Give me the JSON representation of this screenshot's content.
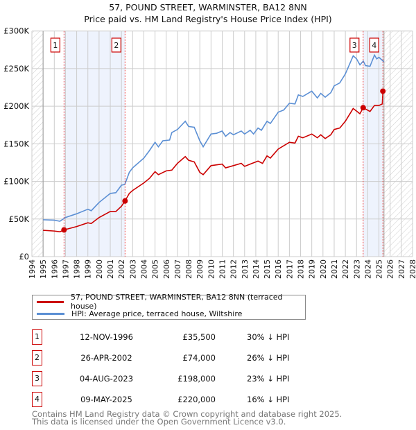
{
  "title": "57, POUND STREET, WARMINSTER, BA12 8NN",
  "subtitle": "Price paid vs. HM Land Registry's House Price Index (HPI)",
  "chart_data": {
    "type": "line",
    "title": "57, POUND STREET, WARMINSTER, BA12 8NN",
    "subtitle": "Price paid vs. HM Land Registry's House Price Index (HPI)",
    "xlim": [
      1994,
      2028
    ],
    "ylim": [
      0,
      300000
    ],
    "x_ticks": [
      "1994",
      "1995",
      "1996",
      "1997",
      "1998",
      "1999",
      "2000",
      "2001",
      "2002",
      "2003",
      "2004",
      "2005",
      "2006",
      "2007",
      "2008",
      "2009",
      "2010",
      "2011",
      "2012",
      "2013",
      "2014",
      "2015",
      "2016",
      "2017",
      "2018",
      "2019",
      "2020",
      "2021",
      "2022",
      "2023",
      "2024",
      "2025",
      "2026",
      "2027",
      "2028"
    ],
    "y_ticks": [
      {
        "v": 0,
        "label": "£0"
      },
      {
        "v": 50000,
        "label": "£50K"
      },
      {
        "v": 100000,
        "label": "£100K"
      },
      {
        "v": 150000,
        "label": "£150K"
      },
      {
        "v": 200000,
        "label": "£200K"
      },
      {
        "v": 250000,
        "label": "£250K"
      },
      {
        "v": 300000,
        "label": "£300K"
      }
    ],
    "grid": true,
    "hatched_ranges": [
      [
        1994,
        1995
      ],
      [
        2025.45,
        2028
      ]
    ],
    "shaded_ranges": [
      [
        1996.87,
        2002.32
      ],
      [
        2023.59,
        2025.35
      ]
    ],
    "series": [
      {
        "name": "57, POUND STREET, WARMINSTER, BA12 8NN (terraced house)",
        "color": "#cc0000",
        "points": [
          [
            1995,
            35000
          ],
          [
            1996,
            34000
          ],
          [
            1996.5,
            33000
          ],
          [
            1996.87,
            35500
          ],
          [
            1998,
            40000
          ],
          [
            1999,
            45000
          ],
          [
            1999.3,
            44000
          ],
          [
            2000,
            52000
          ],
          [
            2001,
            60000
          ],
          [
            2001.5,
            60000
          ],
          [
            2002,
            67000
          ],
          [
            2002.32,
            74000
          ],
          [
            2002.7,
            84000
          ],
          [
            2003,
            88000
          ],
          [
            2004,
            98000
          ],
          [
            2004.5,
            104000
          ],
          [
            2005,
            113000
          ],
          [
            2005.3,
            109000
          ],
          [
            2006,
            114000
          ],
          [
            2006.5,
            115000
          ],
          [
            2007,
            124000
          ],
          [
            2007.7,
            133000
          ],
          [
            2008,
            128000
          ],
          [
            2008.5,
            126000
          ],
          [
            2009,
            112000
          ],
          [
            2009.3,
            109000
          ],
          [
            2010,
            121000
          ],
          [
            2011,
            123000
          ],
          [
            2011.3,
            118000
          ],
          [
            2012,
            121000
          ],
          [
            2012.7,
            124000
          ],
          [
            2013,
            120000
          ],
          [
            2013.5,
            123000
          ],
          [
            2014.2,
            127000
          ],
          [
            2014.6,
            124000
          ],
          [
            2015,
            134000
          ],
          [
            2015.3,
            131000
          ],
          [
            2016,
            143000
          ],
          [
            2017,
            152000
          ],
          [
            2017.5,
            151000
          ],
          [
            2017.8,
            160000
          ],
          [
            2018.2,
            158000
          ],
          [
            2019,
            163000
          ],
          [
            2019.5,
            158000
          ],
          [
            2019.8,
            162000
          ],
          [
            2020.2,
            157000
          ],
          [
            2020.7,
            162000
          ],
          [
            2021,
            169000
          ],
          [
            2021.5,
            171000
          ],
          [
            2022,
            180000
          ],
          [
            2022.7,
            197000
          ],
          [
            2023.3,
            190000
          ],
          [
            2023.59,
            198000
          ],
          [
            2024.2,
            193000
          ],
          [
            2024.6,
            201000
          ],
          [
            2025,
            201000
          ],
          [
            2025.3,
            203000
          ],
          [
            2025.35,
            220000
          ],
          [
            2025.45,
            220000
          ]
        ]
      },
      {
        "name": "HPI: Average price, terraced house, Wiltshire",
        "color": "#5b8fd4",
        "points": [
          [
            1995,
            49000
          ],
          [
            1996,
            48500
          ],
          [
            1996.5,
            47000
          ],
          [
            1997,
            52000
          ],
          [
            1998,
            57000
          ],
          [
            1999,
            63000
          ],
          [
            1999.3,
            61000
          ],
          [
            2000,
            72000
          ],
          [
            2001,
            84000
          ],
          [
            2001.5,
            85000
          ],
          [
            2002,
            95000
          ],
          [
            2002.3,
            96000
          ],
          [
            2002.7,
            112000
          ],
          [
            2003,
            118000
          ],
          [
            2004,
            131000
          ],
          [
            2004.5,
            141000
          ],
          [
            2005,
            152000
          ],
          [
            2005.3,
            146000
          ],
          [
            2005.7,
            154000
          ],
          [
            2006.3,
            155000
          ],
          [
            2006.5,
            165000
          ],
          [
            2007,
            169000
          ],
          [
            2007.7,
            180000
          ],
          [
            2008,
            173000
          ],
          [
            2008.5,
            172000
          ],
          [
            2009,
            154000
          ],
          [
            2009.3,
            146000
          ],
          [
            2010,
            163000
          ],
          [
            2010.5,
            164000
          ],
          [
            2011,
            167000
          ],
          [
            2011.3,
            160000
          ],
          [
            2011.7,
            165000
          ],
          [
            2012,
            162000
          ],
          [
            2012.7,
            167000
          ],
          [
            2013,
            163000
          ],
          [
            2013.5,
            168000
          ],
          [
            2013.8,
            163000
          ],
          [
            2014.2,
            171000
          ],
          [
            2014.5,
            168000
          ],
          [
            2015,
            180000
          ],
          [
            2015.3,
            177000
          ],
          [
            2016,
            192000
          ],
          [
            2016.5,
            195000
          ],
          [
            2017,
            204000
          ],
          [
            2017.5,
            203000
          ],
          [
            2017.8,
            215000
          ],
          [
            2018.2,
            213000
          ],
          [
            2019,
            220000
          ],
          [
            2019.5,
            211000
          ],
          [
            2019.8,
            217000
          ],
          [
            2020.2,
            212000
          ],
          [
            2020.7,
            218000
          ],
          [
            2021,
            227000
          ],
          [
            2021.5,
            231000
          ],
          [
            2022,
            243000
          ],
          [
            2022.7,
            267000
          ],
          [
            2023,
            263000
          ],
          [
            2023.3,
            255000
          ],
          [
            2023.6,
            260000
          ],
          [
            2023.8,
            254000
          ],
          [
            2024.2,
            253000
          ],
          [
            2024.6,
            268000
          ],
          [
            2024.8,
            263000
          ],
          [
            2025,
            265000
          ],
          [
            2025.3,
            261000
          ],
          [
            2025.45,
            259000
          ]
        ]
      }
    ],
    "sales": [
      {
        "n": "1",
        "x": 1996.87,
        "y": 35500
      },
      {
        "n": "2",
        "x": 2002.32,
        "y": 74000
      },
      {
        "n": "3",
        "x": 2023.59,
        "y": 198000
      },
      {
        "n": "4",
        "x": 2025.35,
        "y": 220000
      }
    ]
  },
  "legend": [
    {
      "label": "57, POUND STREET, WARMINSTER, BA12 8NN (terraced house)",
      "color": "#cc0000"
    },
    {
      "label": "HPI: Average price, terraced house, Wiltshire",
      "color": "#5b8fd4"
    }
  ],
  "sales_table": [
    {
      "n": "1",
      "date": "12-NOV-1996",
      "price": "£35,500",
      "hpi": "30% ↓ HPI"
    },
    {
      "n": "2",
      "date": "26-APR-2002",
      "price": "£74,000",
      "hpi": "26% ↓ HPI"
    },
    {
      "n": "3",
      "date": "04-AUG-2023",
      "price": "£198,000",
      "hpi": "23% ↓ HPI"
    },
    {
      "n": "4",
      "date": "09-MAY-2025",
      "price": "£220,000",
      "hpi": "16% ↓ HPI"
    }
  ],
  "footer": {
    "line1": "Contains HM Land Registry data © Crown copyright and database right 2025.",
    "line2": "This data is licensed under the Open Government Licence v3.0."
  }
}
